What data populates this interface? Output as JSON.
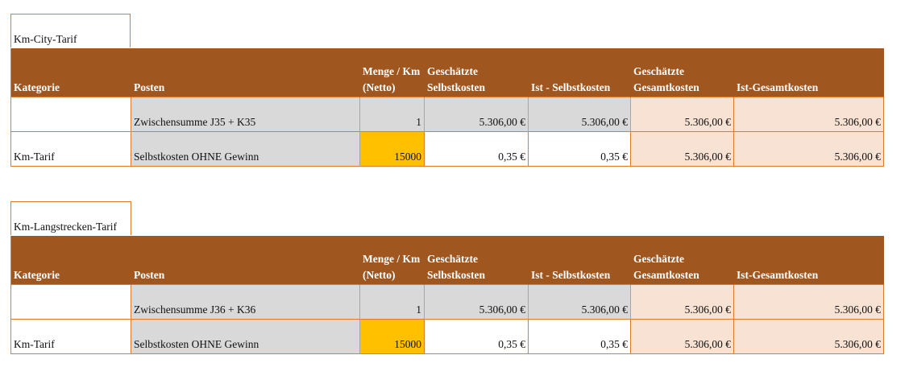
{
  "headers": [
    "Kategorie",
    "Posten",
    "Menge / Km (Netto)",
    "Geschätzte Selbstkosten",
    "Ist - Selbstkosten",
    "Geschätzte Gesamtkosten",
    "Ist-Gesamtkosten"
  ],
  "tables": [
    {
      "title": "Km-City-Tarif",
      "rows": [
        [
          "",
          "Zwischensumme J35 + K35",
          "1",
          "5.306,00 €",
          "5.306,00 €",
          "5.306,00 €",
          "5.306,00 €"
        ],
        [
          "Km-Tarif",
          "Selbstkosten OHNE Gewinn",
          "15000",
          "0,35 €",
          "0,35 €",
          "5.306,00 €",
          "5.306,00 €"
        ]
      ]
    },
    {
      "title": "Km-Langstrecken-Tarif",
      "rows": [
        [
          "",
          "Zwischensumme J36 + K36",
          "1",
          "5.306,00 €",
          "5.306,00 €",
          "5.306,00 €",
          "5.306,00 €"
        ],
        [
          "Km-Tarif",
          "Selbstkosten OHNE Gewinn",
          "15000",
          "0,35 €",
          "0,35 €",
          "5.306,00 €",
          "5.306,00 €"
        ]
      ]
    }
  ],
  "colors": {
    "header": "#a0561f",
    "border": "#e07b2a",
    "grey": "#d9d9d9",
    "highlight": "#ffc000",
    "peach": "#f8e2d3"
  }
}
